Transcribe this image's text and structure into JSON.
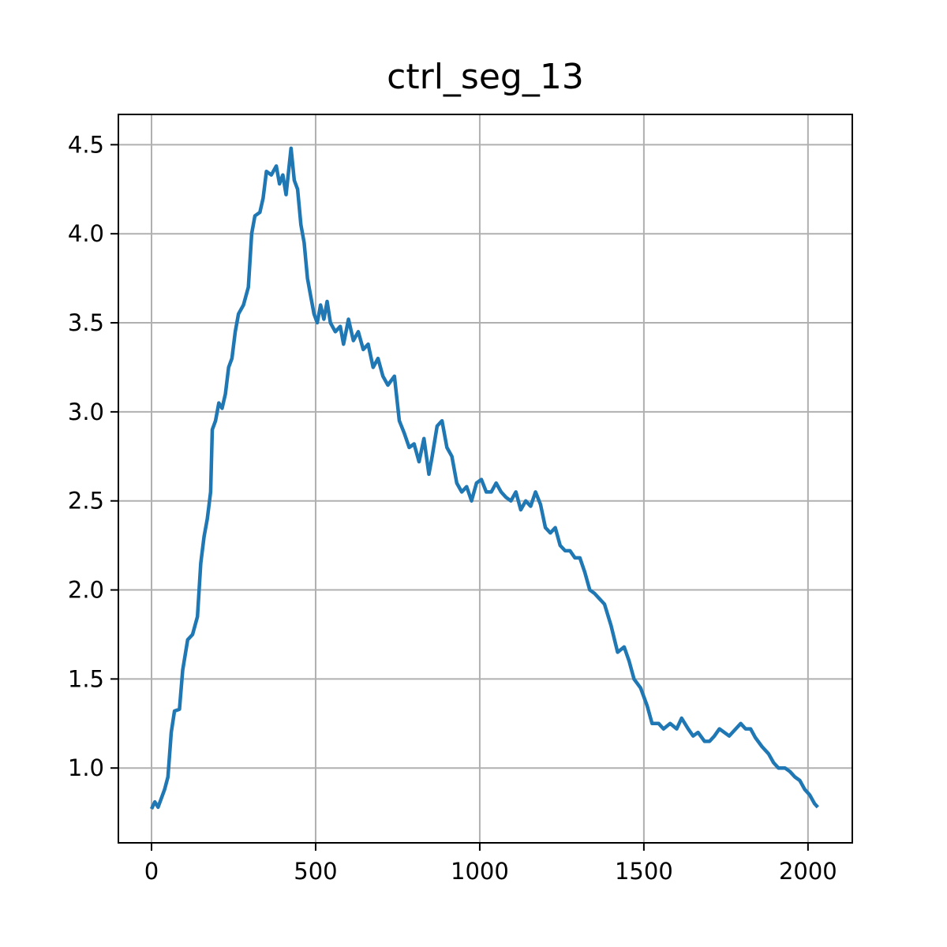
{
  "chart_data": {
    "type": "line",
    "title": "ctrl_seg_13",
    "x": [
      0,
      10,
      20,
      40,
      50,
      60,
      70,
      85,
      95,
      110,
      125,
      140,
      150,
      160,
      170,
      180,
      185,
      195,
      205,
      215,
      225,
      235,
      245,
      255,
      265,
      280,
      295,
      305,
      315,
      330,
      340,
      350,
      365,
      380,
      390,
      400,
      410,
      425,
      435,
      445,
      455,
      465,
      475,
      485,
      495,
      505,
      515,
      525,
      535,
      545,
      560,
      575,
      585,
      600,
      615,
      630,
      645,
      660,
      675,
      690,
      705,
      720,
      740,
      755,
      770,
      785,
      800,
      815,
      830,
      845,
      855,
      870,
      885,
      900,
      915,
      930,
      945,
      960,
      975,
      990,
      1005,
      1020,
      1035,
      1050,
      1065,
      1080,
      1095,
      1110,
      1125,
      1140,
      1155,
      1170,
      1185,
      1200,
      1215,
      1230,
      1245,
      1260,
      1275,
      1290,
      1305,
      1320,
      1335,
      1350,
      1365,
      1380,
      1400,
      1420,
      1440,
      1455,
      1470,
      1490,
      1510,
      1525,
      1545,
      1560,
      1580,
      1600,
      1615,
      1635,
      1650,
      1665,
      1685,
      1700,
      1715,
      1730,
      1745,
      1760,
      1780,
      1795,
      1810,
      1825,
      1840,
      1860,
      1880,
      1895,
      1910,
      1930,
      1945,
      1960,
      1975,
      1990,
      2005,
      2020,
      2030
    ],
    "series": [
      {
        "color": "#1f77b4",
        "values": [
          0.77,
          0.81,
          0.78,
          0.88,
          0.95,
          1.2,
          1.32,
          1.33,
          1.55,
          1.72,
          1.75,
          1.85,
          2.15,
          2.3,
          2.4,
          2.55,
          2.9,
          2.95,
          3.05,
          3.02,
          3.1,
          3.25,
          3.3,
          3.45,
          3.55,
          3.6,
          3.7,
          4.0,
          4.1,
          4.12,
          4.2,
          4.35,
          4.33,
          4.38,
          4.28,
          4.33,
          4.22,
          4.48,
          4.3,
          4.25,
          4.05,
          3.95,
          3.75,
          3.65,
          3.55,
          3.5,
          3.6,
          3.52,
          3.62,
          3.5,
          3.45,
          3.48,
          3.38,
          3.52,
          3.4,
          3.45,
          3.35,
          3.38,
          3.25,
          3.3,
          3.2,
          3.15,
          3.2,
          2.95,
          2.88,
          2.8,
          2.82,
          2.72,
          2.85,
          2.65,
          2.75,
          2.92,
          2.95,
          2.8,
          2.75,
          2.6,
          2.55,
          2.58,
          2.5,
          2.6,
          2.62,
          2.55,
          2.55,
          2.6,
          2.55,
          2.52,
          2.5,
          2.55,
          2.45,
          2.5,
          2.47,
          2.55,
          2.48,
          2.35,
          2.32,
          2.35,
          2.25,
          2.22,
          2.22,
          2.18,
          2.18,
          2.1,
          2.0,
          1.98,
          1.95,
          1.92,
          1.8,
          1.65,
          1.68,
          1.6,
          1.5,
          1.45,
          1.35,
          1.25,
          1.25,
          1.22,
          1.25,
          1.22,
          1.28,
          1.22,
          1.18,
          1.2,
          1.15,
          1.15,
          1.18,
          1.22,
          1.2,
          1.18,
          1.22,
          1.25,
          1.22,
          1.22,
          1.17,
          1.12,
          1.08,
          1.03,
          1.0,
          1.0,
          0.98,
          0.95,
          0.93,
          0.88,
          0.85,
          0.8,
          0.78
        ]
      }
    ],
    "xlim": [
      -101,
      2135
    ],
    "ylim": [
      0.58,
      4.67
    ],
    "xticks": [
      0,
      500,
      1000,
      1500,
      2000
    ],
    "yticks": [
      {
        "value": 1,
        "label": "1.0"
      },
      1.5,
      {
        "value": 2,
        "label": "2.0"
      },
      2.5,
      {
        "value": 3,
        "label": "3.0"
      },
      3.5,
      {
        "value": 4,
        "label": "4.0"
      },
      4.5
    ],
    "grid": true
  }
}
